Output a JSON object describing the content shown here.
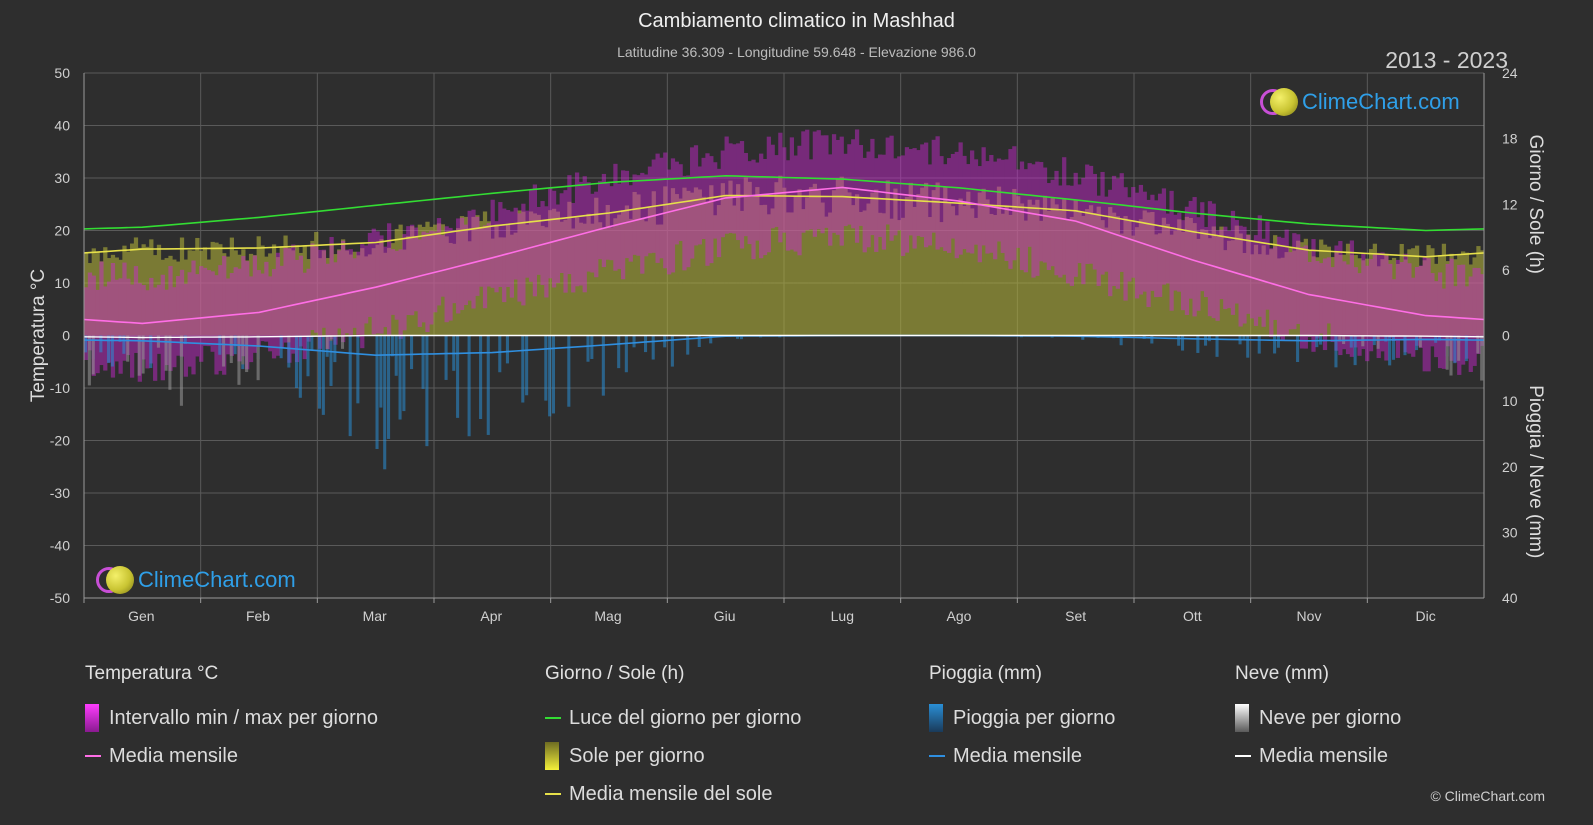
{
  "header": {
    "title": "Cambiamento climatico in Mashhad",
    "subtitle": "Latitudine 36.309 - Longitudine 59.648 - Elevazione 986.0",
    "years": "2013 - 2023"
  },
  "brand": {
    "logo_text": "ClimeChart.com",
    "copyright": "© ClimeChart.com"
  },
  "colors": {
    "background": "#2e2e2e",
    "grid": "#5a5a5a",
    "temp_range": "#d026d6",
    "temp_mean": "#ff6ee6",
    "daylight": "#33dd33",
    "sunshine": "#b8b83a",
    "sunshine_mean": "#e6e04a",
    "rain": "#2a8fd6",
    "rain_mean": "#2f8fe0",
    "snow": "#9a9a9a",
    "snow_mean": "#ffffff"
  },
  "chart_data": {
    "type": "climate-combo",
    "categories": [
      "Gen",
      "Feb",
      "Mar",
      "Apr",
      "Mag",
      "Giu",
      "Lug",
      "Ago",
      "Set",
      "Ott",
      "Nov",
      "Dic"
    ],
    "axes": {
      "left": {
        "label": "Temperatura °C",
        "range": [
          -50,
          50
        ],
        "ticks": [
          50,
          40,
          30,
          20,
          10,
          0,
          -10,
          -20,
          -30,
          -40,
          -50
        ]
      },
      "right_top": {
        "label": "Giorno / Sole (h)",
        "range": [
          0,
          24
        ],
        "ticks": [
          24,
          18,
          12,
          6,
          0
        ]
      },
      "right_bottom": {
        "label": "Pioggia / Neve (mm)",
        "range": [
          0,
          40
        ],
        "ticks": [
          10,
          20,
          30,
          40
        ]
      }
    },
    "series": [
      {
        "name": "Media mensile",
        "group": "Temperatura °C",
        "unit": "°C",
        "values": [
          2.3,
          4.4,
          9.2,
          14.8,
          20.7,
          26.2,
          28.2,
          25.6,
          21.8,
          14.4,
          7.8,
          3.8
        ]
      },
      {
        "name": "Intervallo min / max per giorno",
        "group": "Temperatura °C",
        "unit": "°C",
        "min": [
          -6,
          -4,
          1,
          7,
          12,
          17,
          19,
          17,
          12,
          6,
          0,
          -4
        ],
        "max": [
          11,
          13,
          18,
          24,
          30,
          35,
          37,
          35,
          31,
          24,
          17,
          12
        ]
      },
      {
        "name": "Luce del giorno per giorno",
        "group": "Giorno / Sole (h)",
        "unit": "h",
        "values": [
          9.9,
          10.8,
          11.9,
          13.0,
          14.0,
          14.6,
          14.3,
          13.5,
          12.4,
          11.2,
          10.2,
          9.6
        ]
      },
      {
        "name": "Media mensile del sole",
        "group": "Giorno / Sole (h)",
        "unit": "h",
        "values": [
          7.9,
          8.0,
          8.5,
          10.0,
          11.2,
          12.8,
          12.7,
          12.1,
          11.4,
          9.5,
          7.8,
          7.2
        ]
      },
      {
        "name": "Media mensile",
        "group": "Pioggia (mm)",
        "unit": "mm",
        "values": [
          0.8,
          1.6,
          3.0,
          2.6,
          1.4,
          0.1,
          0.0,
          0.0,
          0.1,
          0.5,
          0.8,
          0.6
        ]
      },
      {
        "name": "Media mensile",
        "group": "Neve (mm)",
        "unit": "mm",
        "values": [
          0.3,
          0.2,
          0.0,
          0.0,
          0.0,
          0.0,
          0.0,
          0.0,
          0.0,
          0.0,
          0.0,
          0.1
        ]
      }
    ],
    "grid": true,
    "legend_position": "bottom"
  },
  "legend": {
    "groups": [
      {
        "title": "Temperatura °C",
        "items": [
          {
            "label": "Intervallo min / max per giorno",
            "kind": "box",
            "color": "#d026d6"
          },
          {
            "label": "Media mensile",
            "kind": "line",
            "color": "#ff6ee6"
          }
        ]
      },
      {
        "title": "Giorno / Sole (h)",
        "items": [
          {
            "label": "Luce del giorno per giorno",
            "kind": "line",
            "color": "#33dd33"
          },
          {
            "label": "Sole per giorno",
            "kind": "box",
            "color": "#d8d438"
          },
          {
            "label": "Media mensile del sole",
            "kind": "line",
            "color": "#e6e04a"
          }
        ]
      },
      {
        "title": "Pioggia (mm)",
        "items": [
          {
            "label": "Pioggia per giorno",
            "kind": "box",
            "color": "#2a8fd6"
          },
          {
            "label": "Media mensile",
            "kind": "line",
            "color": "#2f8fe0"
          }
        ]
      },
      {
        "title": "Neve (mm)",
        "items": [
          {
            "label": "Neve per giorno",
            "kind": "box",
            "color": "#d8d8d8"
          },
          {
            "label": "Media mensile",
            "kind": "line",
            "color": "#ffffff"
          }
        ]
      }
    ]
  }
}
